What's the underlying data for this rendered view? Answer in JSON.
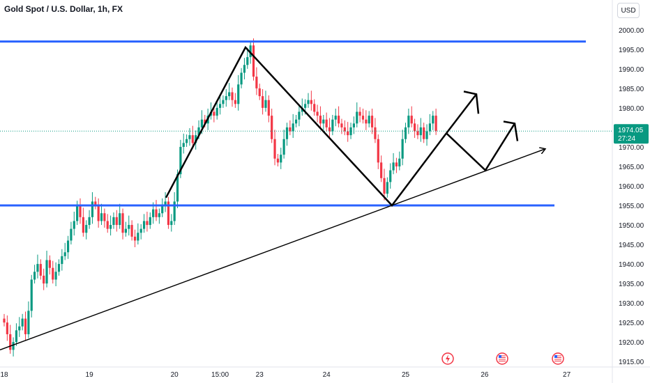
{
  "header": {
    "title": "Gold Spot / U.S. Dollar, 1h, FX",
    "currency": "USD"
  },
  "price_tag": {
    "price": "1974.05",
    "timer": "27:24",
    "color": "#089981"
  },
  "colors": {
    "up": "#089981",
    "down": "#f23645",
    "level": "#2962ff",
    "drawing": "#000000"
  },
  "event_icons": [
    "flash-event-icon",
    "us-flag-event-icon",
    "us-flag-event-icon"
  ],
  "chart_data": {
    "type": "candlestick",
    "symbol": "Gold Spot / U.S. Dollar",
    "interval": "1h",
    "ylim": [
      1912,
      2003
    ],
    "y_ticks": [
      1915,
      1920,
      1925,
      1930,
      1935,
      1940,
      1945,
      1950,
      1955,
      1960,
      1965,
      1970,
      1975,
      1980,
      1985,
      1990,
      1995,
      2000
    ],
    "x_ticks": [
      {
        "label": "18",
        "t": 0
      },
      {
        "label": "19",
        "t": 28
      },
      {
        "label": "20",
        "t": 56
      },
      {
        "label": "15:00",
        "t": 71
      },
      {
        "label": "23",
        "t": 84
      },
      {
        "label": "24",
        "t": 106
      },
      {
        "label": "25",
        "t": 132
      },
      {
        "label": "26",
        "t": 158
      },
      {
        "label": "27",
        "t": 185
      }
    ],
    "horizontal_levels": [
      1997,
      1955
    ],
    "last_price": 1974.05,
    "candles_close": [
      1925,
      1922,
      1918,
      1920,
      1923,
      1924,
      1926,
      1922,
      1928,
      1936,
      1938,
      1940,
      1937,
      1935,
      1941,
      1939,
      1936,
      1938,
      1940,
      1942,
      1943,
      1946,
      1949,
      1951,
      1955,
      1952,
      1948,
      1950,
      1952,
      1956,
      1955,
      1951,
      1953,
      1951,
      1949,
      1950,
      1952,
      1950,
      1953,
      1948,
      1949,
      1950,
      1947,
      1946,
      1948,
      1949,
      1951,
      1950,
      1952,
      1954,
      1952,
      1953,
      1955,
      1956,
      1950,
      1951,
      1956,
      1963,
      1970,
      1971,
      1972,
      1973,
      1971,
      1973,
      1975,
      1977,
      1976,
      1978,
      1979,
      1978,
      1980,
      1981,
      1982,
      1983,
      1984,
      1982,
      1981,
      1986,
      1989,
      1991,
      1993,
      1996,
      1988,
      1985,
      1983,
      1980,
      1982,
      1978,
      1972,
      1967,
      1966,
      1968,
      1972,
      1975,
      1974,
      1976,
      1977,
      1979,
      1980,
      1981,
      1982,
      1981,
      1979,
      1978,
      1976,
      1977,
      1975,
      1974,
      1977,
      1978,
      1976,
      1975,
      1974,
      1973,
      1975,
      1976,
      1979,
      1978,
      1977,
      1976,
      1978,
      1975,
      1972,
      1966,
      1962,
      1958,
      1961,
      1964,
      1966,
      1965,
      1967,
      1972,
      1975,
      1978,
      1976,
      1974,
      1973,
      1975,
      1972,
      1974,
      1976,
      1978,
      1974.05
    ]
  }
}
